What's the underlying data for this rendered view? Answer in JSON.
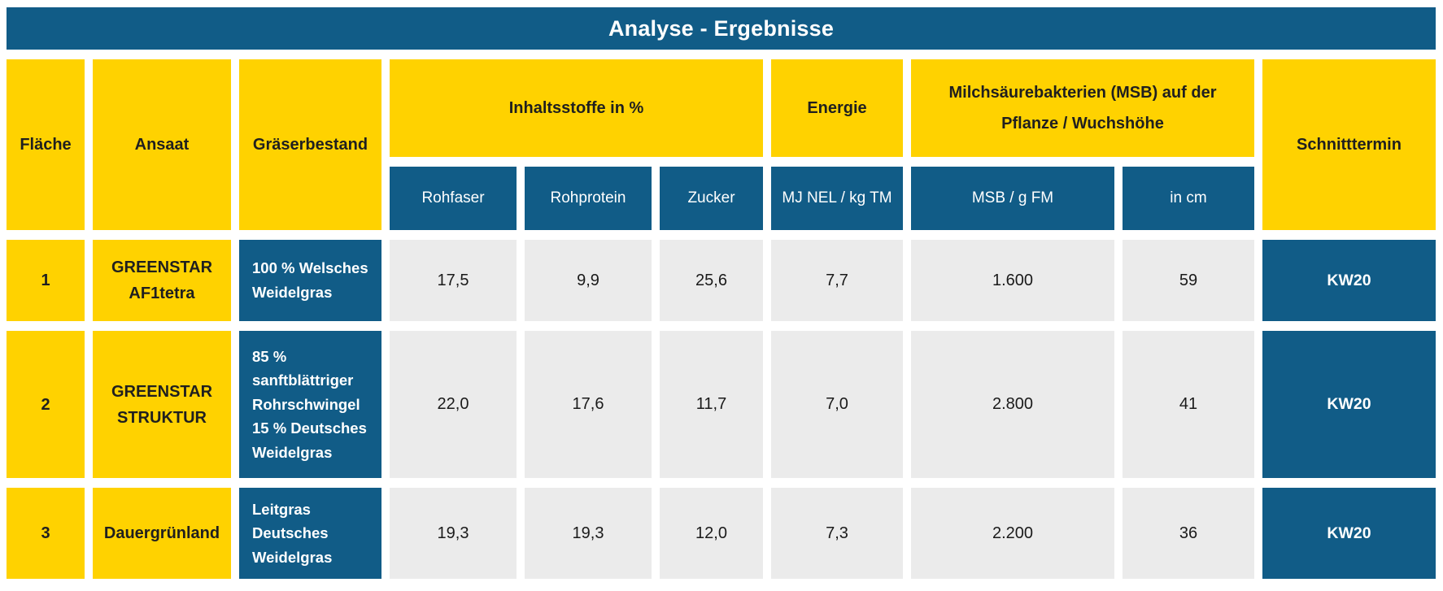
{
  "chart_data": {
    "type": "table",
    "title": "Analyse - Ergebnisse",
    "headers": {
      "flaeche": "Fläche",
      "ansaat": "Ansaat",
      "graeserbestand": "Gräserbestand",
      "inhaltsstoffe_group": "Inhaltsstoffe in %",
      "rohfaser": "Rohfaser",
      "rohprotein": "Rohprotein",
      "zucker": "Zucker",
      "energie_group": "Energie",
      "energie_unit": "MJ NEL / kg TM",
      "msb_group": "Milchsäurebakterien (MSB) auf der\nPflanze / Wuchshöhe",
      "msb_unit": "MSB / g FM",
      "wuchshoehe_unit": "in cm",
      "schnitttermin": "Schnitttermin"
    },
    "rows": [
      {
        "flaeche": "1",
        "ansaat": "GREENSTAR\nAF1tetra",
        "graeserbestand": "100 % Welsches\nWeidelgras",
        "rohfaser": "17,5",
        "rohprotein": "9,9",
        "zucker": "25,6",
        "energie": "7,7",
        "msb": "1.600",
        "wuchshoehe": "59",
        "schnitttermin": "KW20"
      },
      {
        "flaeche": "2",
        "ansaat": "GREENSTAR\nSTRUKTUR",
        "graeserbestand": "85 %\nsanftblättriger\nRohrschwingel\n15 % Deutsches\nWeidelgras",
        "rohfaser": "22,0",
        "rohprotein": "17,6",
        "zucker": "11,7",
        "energie": "7,0",
        "msb": "2.800",
        "wuchshoehe": "41",
        "schnitttermin": "KW20"
      },
      {
        "flaeche": "3",
        "ansaat": "Dauergrünland",
        "graeserbestand": "Leitgras\nDeutsches\nWeidelgras",
        "rohfaser": "19,3",
        "rohprotein": "19,3",
        "zucker": "12,0",
        "energie": "7,3",
        "msb": "2.200",
        "wuchshoehe": "36",
        "schnitttermin": "KW20"
      }
    ],
    "colors": {
      "header_blue": "#115c87",
      "accent_yellow": "#ffd200",
      "cell_gray": "#ebebeb",
      "title_text": "#ffffff",
      "text_on_yellow": "#1f1f1f"
    }
  }
}
